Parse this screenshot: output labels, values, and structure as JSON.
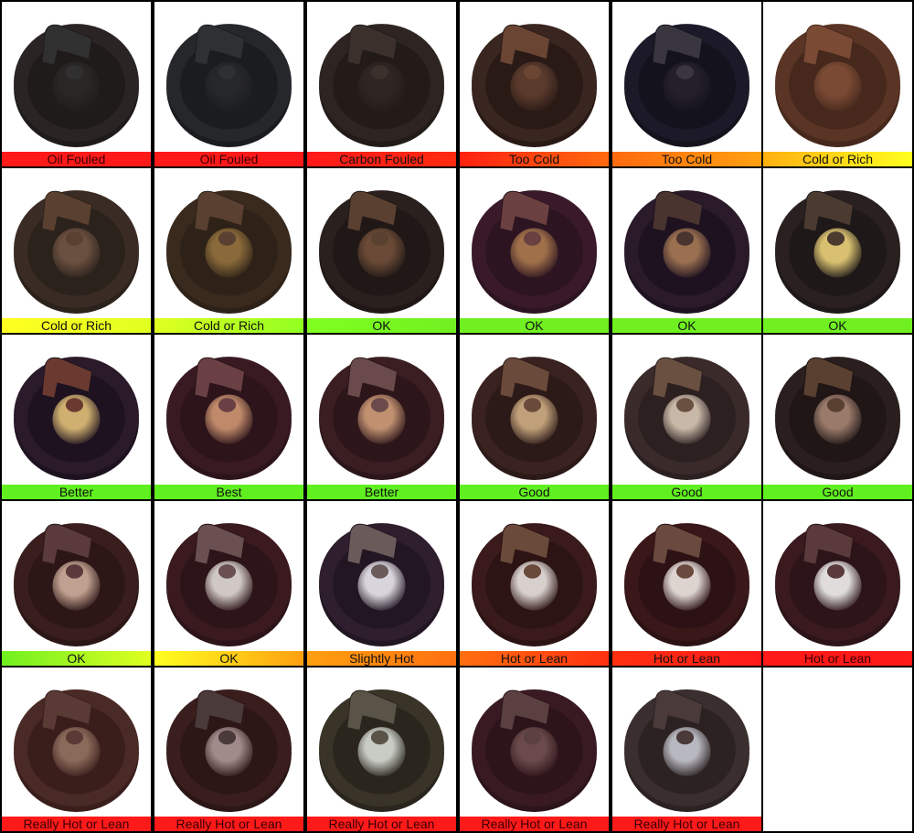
{
  "cells": [
    {
      "label": "Oil Fouled",
      "grad": [
        "#ff1a1a",
        "#ff1a1a"
      ],
      "rim": "#2b2424",
      "body": "#1f1b1b",
      "ins": "#2a2626",
      "elec": "#303030"
    },
    {
      "label": "Oil Fouled",
      "grad": [
        "#ff1a1a",
        "#ff1a1a"
      ],
      "rim": "#25272b",
      "body": "#1b1c20",
      "ins": "#262729",
      "elec": "#2e3034"
    },
    {
      "label": "Carbon Fouled",
      "grad": [
        "#ff1a1a",
        "#ff2a10"
      ],
      "rim": "#2e2522",
      "body": "#221b18",
      "ins": "#2f2623",
      "elec": "#3b302b"
    },
    {
      "label": "Too Cold",
      "grad": [
        "#ff2010",
        "#ff6a10"
      ],
      "rim": "#3a2620",
      "body": "#2a1a16",
      "ins": "#5a3a2c",
      "elec": "#6a4534"
    },
    {
      "label": "Too Cold",
      "grad": [
        "#ff6a10",
        "#ffa010"
      ],
      "rim": "#1c1a28",
      "body": "#14121c",
      "ins": "#24202a",
      "elec": "#3a3640"
    },
    {
      "label": "Cold or Rich",
      "grad": [
        "#ffb010",
        "#ffff20"
      ],
      "rim": "#5a3424",
      "body": "#46281c",
      "ins": "#7a4a34",
      "elec": "#7a4a34"
    },
    {
      "label": "Cold or Rich",
      "grad": [
        "#ffff20",
        "#e0ff20"
      ],
      "rim": "#3a2c24",
      "body": "#2c221c",
      "ins": "#6a5040",
      "elec": "#5a4030"
    },
    {
      "label": "Cold or Rich",
      "grad": [
        "#e0ff20",
        "#90ff20"
      ],
      "rim": "#3a2a1e",
      "body": "#2e2218",
      "ins": "#8a6a3a",
      "elec": "#5a4030"
    },
    {
      "label": "OK",
      "grad": [
        "#80ff20",
        "#70f020"
      ],
      "rim": "#2a201e",
      "body": "#201816",
      "ins": "#6a4a36",
      "elec": "#5a4030"
    },
    {
      "label": "OK",
      "grad": [
        "#70f020",
        "#70f020"
      ],
      "rim": "#3a1a2a",
      "body": "#2c1420",
      "ins": "#a0704a",
      "elec": "#6a4040"
    },
    {
      "label": "OK",
      "grad": [
        "#70f020",
        "#70f020"
      ],
      "rim": "#2a1a2a",
      "body": "#1e1220",
      "ins": "#9a7050",
      "elec": "#4a3430"
    },
    {
      "label": "OK",
      "grad": [
        "#70f020",
        "#70f020"
      ],
      "rim": "#2a2020",
      "body": "#1e1818",
      "ins": "#d8c070",
      "elec": "#4a3a30"
    },
    {
      "label": "Better",
      "grad": [
        "#60f020",
        "#60f020"
      ],
      "rim": "#2a1a2a",
      "body": "#1e1220",
      "ins": "#d0b070",
      "elec": "#6a3a30"
    },
    {
      "label": "Best",
      "grad": [
        "#60f020",
        "#60f020"
      ],
      "rim": "#3a1a22",
      "body": "#2c141a",
      "ins": "#c08a6a",
      "elec": "#6a4044"
    },
    {
      "label": "Better",
      "grad": [
        "#60f020",
        "#60f020"
      ],
      "rim": "#3a1e22",
      "body": "#2c161a",
      "ins": "#c09070",
      "elec": "#6a4a4a"
    },
    {
      "label": "Good",
      "grad": [
        "#60f020",
        "#60f020"
      ],
      "rim": "#3a2220",
      "body": "#2c1a18",
      "ins": "#c0a07a",
      "elec": "#6a4a3a"
    },
    {
      "label": "Good",
      "grad": [
        "#60f020",
        "#60f020"
      ],
      "rim": "#3a2a2a",
      "body": "#2c2020",
      "ins": "#c8b8a8",
      "elec": "#6a5040"
    },
    {
      "label": "Good",
      "grad": [
        "#60f020",
        "#60f020"
      ],
      "rim": "#2a1e1e",
      "body": "#201616",
      "ins": "#9a7a6a",
      "elec": "#5a4030"
    },
    {
      "label": "OK",
      "grad": [
        "#70f020",
        "#e0ff20"
      ],
      "rim": "#3a1e1e",
      "body": "#2c1616",
      "ins": "#c0a090",
      "elec": "#5a3a3a"
    },
    {
      "label": "OK",
      "grad": [
        "#ffff20",
        "#ffa010"
      ],
      "rim": "#3a1a1e",
      "body": "#2c1418",
      "ins": "#d0c8c4",
      "elec": "#6a5050"
    },
    {
      "label": "Slightly Hot",
      "grad": [
        "#ffa010",
        "#ff7010"
      ],
      "rim": "#2e1e2e",
      "body": "#221622",
      "ins": "#d8d4dc",
      "elec": "#6a5a5a"
    },
    {
      "label": "Hot or Lean",
      "grad": [
        "#ff7010",
        "#ff3010"
      ],
      "rim": "#3a1a1a",
      "body": "#2c1414",
      "ins": "#d8d0cc",
      "elec": "#6a4a3a"
    },
    {
      "label": "Hot or Lean",
      "grad": [
        "#ff3010",
        "#ff1a1a"
      ],
      "rim": "#3a181a",
      "body": "#2c1214",
      "ins": "#ddd4d0",
      "elec": "#6a4a3e"
    },
    {
      "label": "Hot or Lean",
      "grad": [
        "#ff1a1a",
        "#ff1a1a"
      ],
      "rim": "#3a1a1e",
      "body": "#2c1418",
      "ins": "#e0dcdc",
      "elec": "#5a3a3a"
    },
    {
      "label": "Really Hot or Lean",
      "grad": [
        "#ff1a1a",
        "#ff1a1a"
      ],
      "rim": "#4a2a26",
      "body": "#3a1e1c",
      "ins": "#8a6a5a",
      "elec": "#5a3a34"
    },
    {
      "label": "Really Hot or Lean",
      "grad": [
        "#ff1a1a",
        "#ff1a1a"
      ],
      "rim": "#3a1e1e",
      "body": "#2c1616",
      "ins": "#a08a8a",
      "elec": "#4a3a3a"
    },
    {
      "label": "Really Hot or Lean",
      "grad": [
        "#ff1a1a",
        "#ff1a1a"
      ],
      "rim": "#3a3428",
      "body": "#2a261e",
      "ins": "#c8ccc4",
      "elec": "#5a5448"
    },
    {
      "label": "Really Hot or Lean",
      "grad": [
        "#ff1a1a",
        "#ff1a1a"
      ],
      "rim": "#3a1a22",
      "body": "#2c141a",
      "ins": "#6a4a4a",
      "elec": "#5a4040"
    },
    {
      "label": "Really Hot or Lean",
      "grad": [
        "#ff1a1a",
        "#ff1a1a"
      ],
      "rim": "#3a2e2e",
      "body": "#2c2222",
      "ins": "#b8b8c0",
      "elec": "#4a3a3a"
    }
  ]
}
